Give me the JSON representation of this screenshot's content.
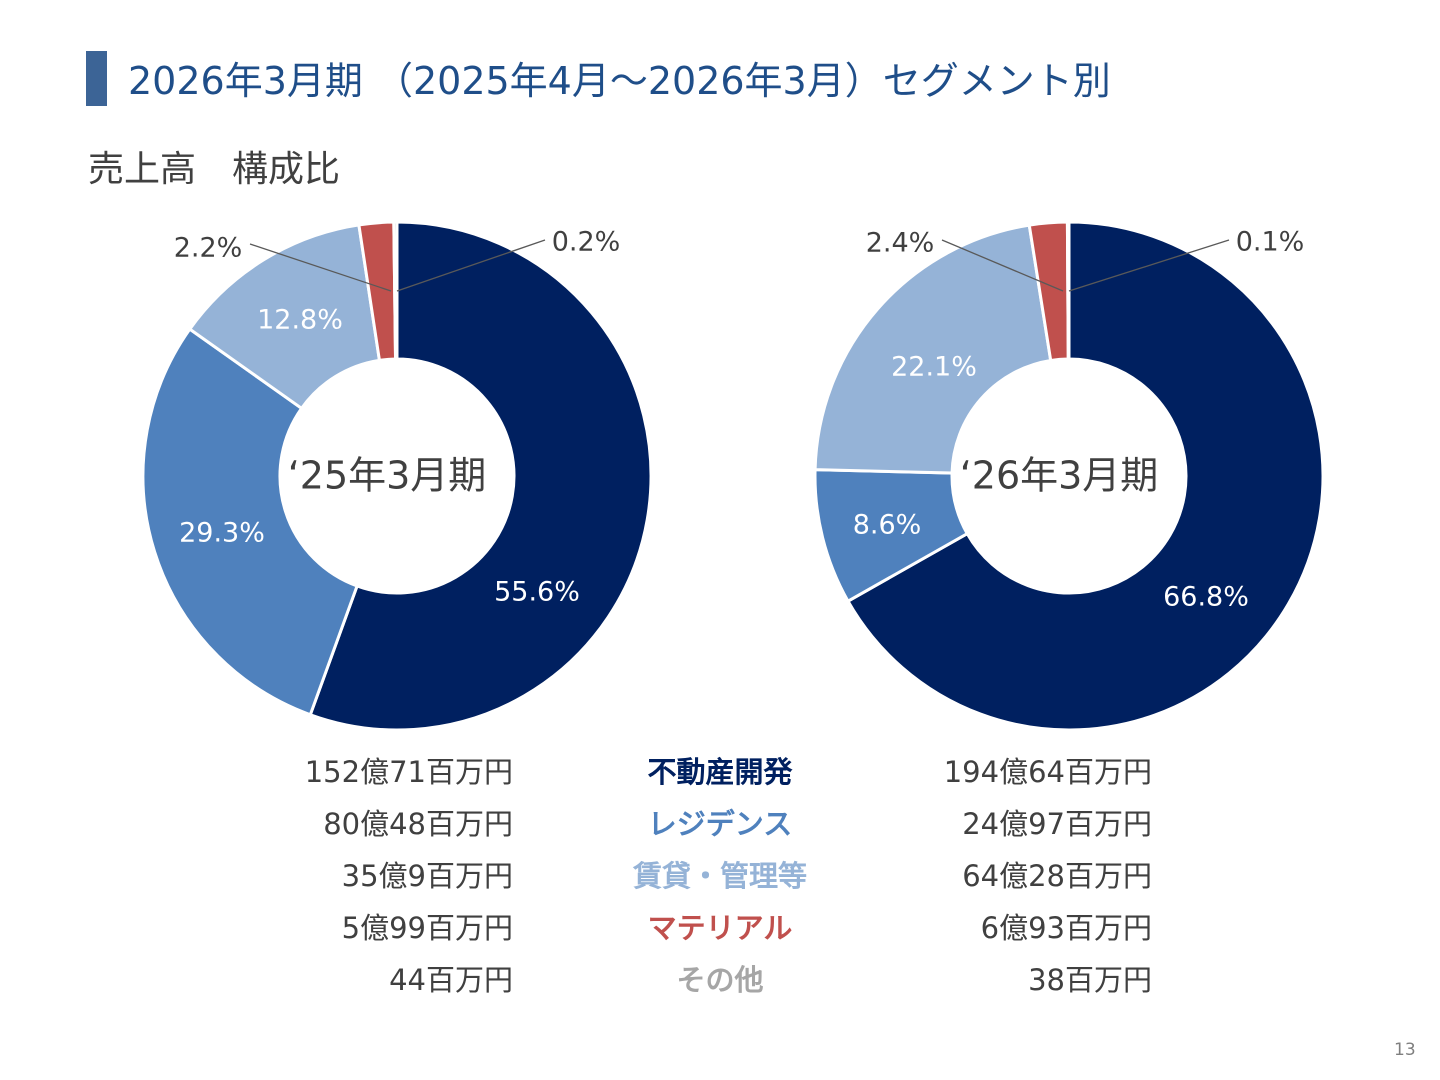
{
  "header": {
    "title": "2026年3月期 （2025年4月～2026年3月）セグメント別",
    "subtitle": "売上高　構成比",
    "page_number": "13"
  },
  "colors": {
    "real_estate_dev": "#002060",
    "residence": "#4f81bd",
    "rental_mgmt": "#95b3d7",
    "material": "#c0504d",
    "other": "#a6a6a6"
  },
  "segments": [
    {
      "label": "不動産開発",
      "color": "#002060"
    },
    {
      "label": "レジデンス",
      "color": "#4f81bd"
    },
    {
      "label": "賃貸・管理等",
      "color": "#95b3d7"
    },
    {
      "label": "マテリアル",
      "color": "#c0504d"
    },
    {
      "label": "その他",
      "color": "#a6a6a6"
    }
  ],
  "values_fy25": [
    "152億71百万円",
    "80億48百万円",
    "35億9百万円",
    "5億99百万円",
    "44百万円"
  ],
  "values_fy26": [
    "194億64百万円",
    "24億97百万円",
    "64億28百万円",
    "6億93百万円",
    "38百万円"
  ],
  "chart_data": [
    {
      "type": "pie",
      "title": "‘25年3月期",
      "categories": [
        "不動産開発",
        "レジデンス",
        "賃貸・管理等",
        "マテリアル",
        "その他"
      ],
      "values": [
        55.6,
        29.3,
        12.8,
        2.2,
        0.2
      ],
      "value_labels": [
        "55.6%",
        "29.3%",
        "12.8%",
        "2.2%",
        "0.2%"
      ]
    },
    {
      "type": "pie",
      "title": "‘26年3月期",
      "categories": [
        "不動産開発",
        "レジデンス",
        "賃貸・管理等",
        "マテリアル",
        "その他"
      ],
      "values": [
        66.8,
        8.6,
        22.1,
        2.4,
        0.1
      ],
      "value_labels": [
        "66.8%",
        "8.6%",
        "22.1%",
        "2.4%",
        "0.1%"
      ]
    }
  ]
}
